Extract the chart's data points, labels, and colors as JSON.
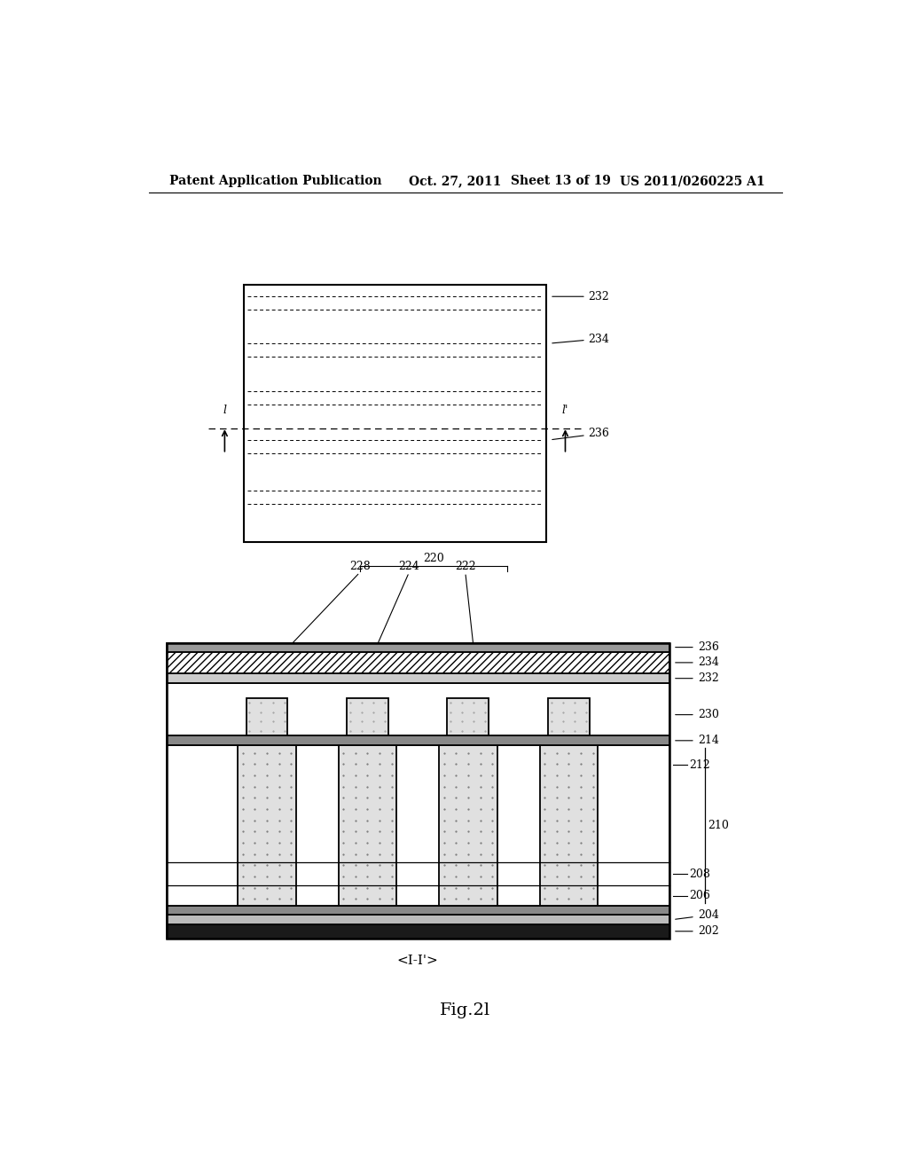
{
  "bg_color": "#ffffff",
  "line_color": "#000000",
  "header_text": "Patent Application Publication",
  "header_date": "Oct. 27, 2011",
  "header_sheet": "Sheet 13 of 19",
  "header_patent": "US 2011/0260225 A1",
  "fig_label": "Fig.2l",
  "cross_section_label": "<I-I'>"
}
